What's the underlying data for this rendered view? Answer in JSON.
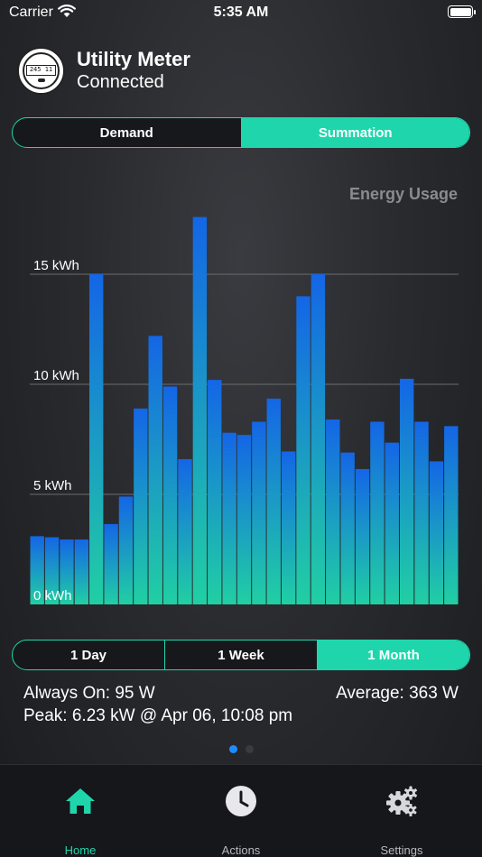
{
  "status_bar": {
    "carrier": "Carrier",
    "time": "5:35 AM"
  },
  "header": {
    "title": "Utility Meter",
    "status": "Connected",
    "meter_reading": "245 11"
  },
  "mode_tabs": [
    {
      "label": "Demand",
      "active": false
    },
    {
      "label": "Summation",
      "active": true
    }
  ],
  "range_tabs": [
    {
      "label": "1 Day",
      "active": false
    },
    {
      "label": "1 Week",
      "active": false
    },
    {
      "label": "1 Month",
      "active": true
    }
  ],
  "chart_data": {
    "type": "bar",
    "title": "Energy Usage",
    "ylim": [
      0,
      17.6
    ],
    "yticks": [
      0,
      5,
      10,
      15
    ],
    "ytick_labels": [
      "0 kWh",
      "5 kWh",
      "10 kWh",
      "15 kWh"
    ],
    "grid": true,
    "values": [
      3.1,
      3.05,
      2.95,
      2.95,
      15.0,
      3.65,
      4.9,
      8.9,
      12.2,
      9.9,
      6.6,
      17.6,
      10.2,
      7.8,
      7.7,
      8.3,
      9.35,
      6.95,
      14.0,
      15.0,
      8.4,
      6.9,
      6.15,
      8.3,
      7.35,
      10.25,
      8.3,
      6.5,
      8.1
    ],
    "colors": {
      "top": "#1466e6",
      "bottom": "#21cfa3",
      "grid": "#6b6c70",
      "label": "#ffffff"
    }
  },
  "stats": {
    "always_on": "Always On: 95 W",
    "average": "Average: 363  W",
    "peak": "Peak: 6.23 kW @ Apr 06, 10:08 pm"
  },
  "pager": {
    "pages": 2,
    "current": 1
  },
  "tab_bar": [
    {
      "label": "Home",
      "icon": "home-icon",
      "active": true
    },
    {
      "label": "Actions",
      "icon": "clock-icon",
      "active": false
    },
    {
      "label": "Settings",
      "icon": "gears-icon",
      "active": false
    }
  ],
  "colors": {
    "accent": "#1fd6ac",
    "pager_active": "#1e8cff"
  }
}
